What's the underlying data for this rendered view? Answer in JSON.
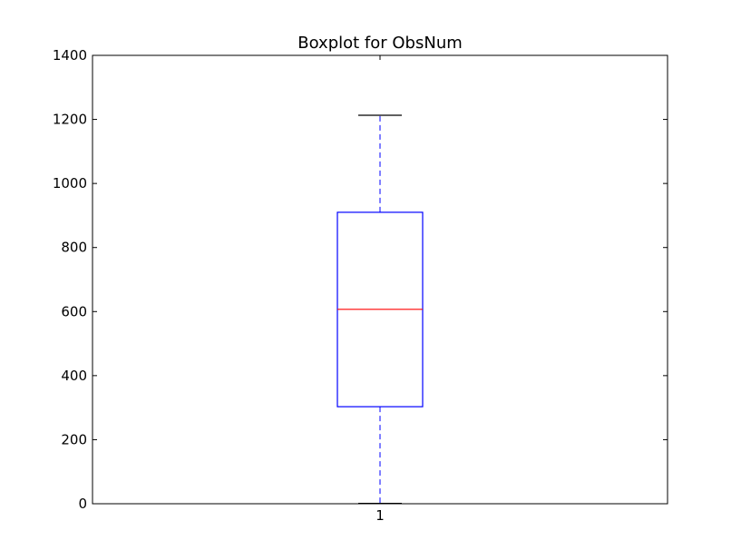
{
  "chart_data": {
    "type": "boxplot",
    "title": "Boxplot for ObsNum",
    "xlabel": "",
    "ylabel": "",
    "ylim": [
      0,
      1400
    ],
    "yticks": [
      0,
      200,
      400,
      600,
      800,
      1000,
      1200,
      1400
    ],
    "categories": [
      "1"
    ],
    "boxes": [
      {
        "category": "1",
        "whisker_low": 1,
        "q1": 303,
        "median": 607,
        "q3": 910,
        "whisker_high": 1213
      }
    ],
    "grid": false,
    "colors": {
      "box": "#0000ff",
      "median": "#ff0000",
      "cap": "#000000",
      "axes": "#000000"
    }
  }
}
